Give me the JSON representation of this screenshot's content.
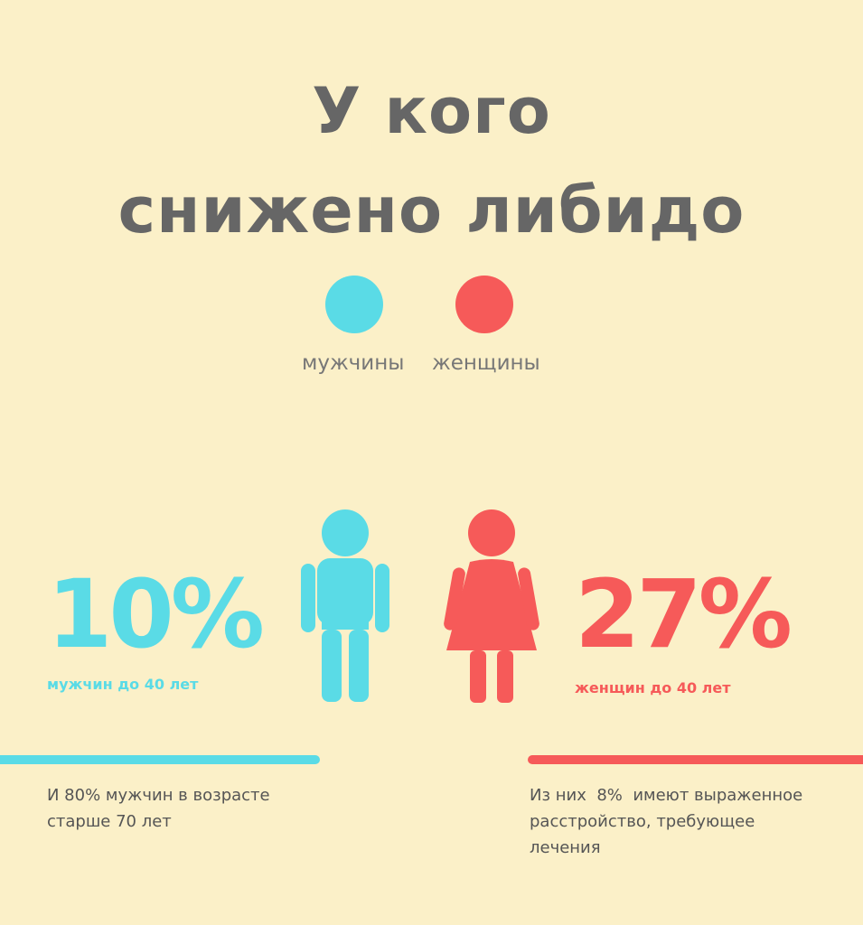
{
  "title": {
    "line1": "У кого",
    "line2": "снижено либидо"
  },
  "colors": {
    "men": "#5adbe6",
    "women": "#f65a59",
    "background": "#fbf0c8",
    "text": "#666666"
  },
  "legend": {
    "men": "мужчины",
    "women": "женщины"
  },
  "men": {
    "percent": "10%",
    "label": "мужчин до 40 лет",
    "note_line1": "И 80% мужчин в возрасте",
    "note_line2": "старше 70 лет",
    "icon": "man-icon"
  },
  "women": {
    "percent": "27%",
    "label": "женщин до 40 лет",
    "note_line1": "Из них  8%  имеют выраженное",
    "note_line2": "расстройство, требующее",
    "note_line3": "лечения",
    "icon": "woman-icon"
  }
}
